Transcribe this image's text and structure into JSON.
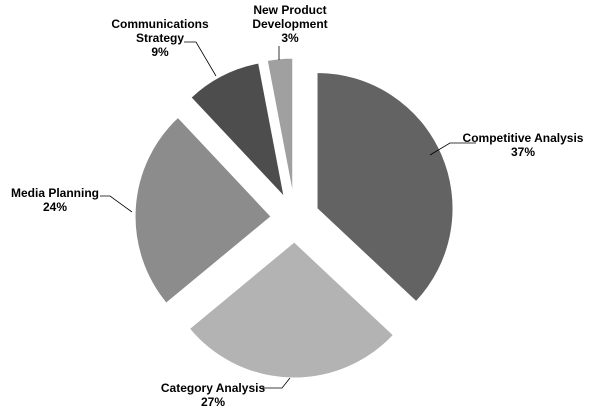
{
  "chart_data": {
    "type": "pie",
    "categories": [
      "Competitive Analysis",
      "Category Analysis",
      "Media Planning",
      "Communications Strategy",
      "New Product Development"
    ],
    "values": [
      37,
      27,
      24,
      9,
      3
    ],
    "value_labels": [
      "37%",
      "27%",
      "24%",
      "9%",
      "3%"
    ],
    "colors": [
      "#636363",
      "#b3b3b3",
      "#8c8c8c",
      "#4d4d4d",
      "#a0a0a0"
    ]
  }
}
